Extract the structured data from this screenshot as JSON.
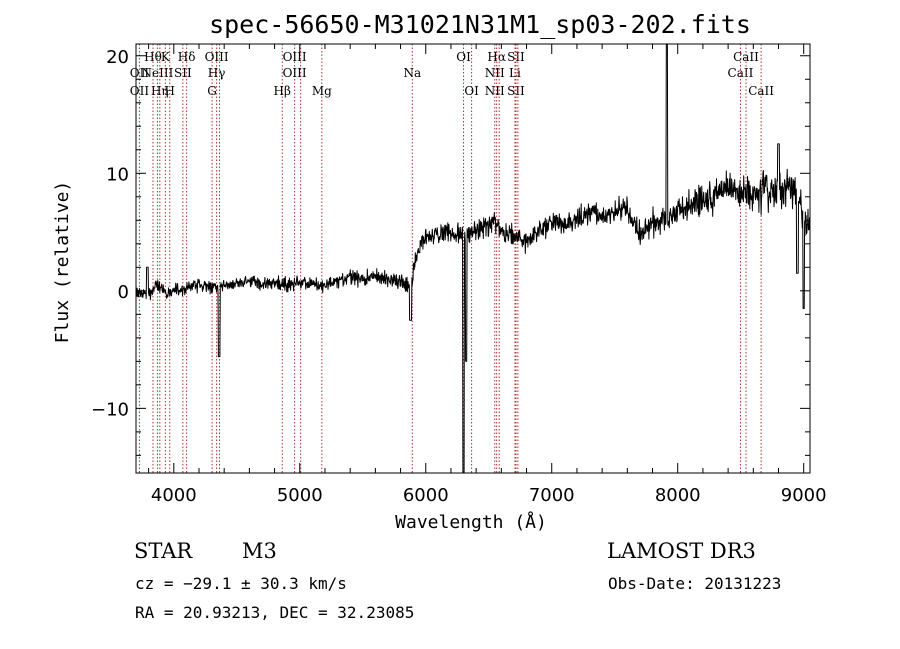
{
  "chart_data": {
    "type": "line",
    "title": "spec-56650-M31021N31M1_sp03-202.fits",
    "xlabel": "Wavelength (Å)",
    "ylabel": "Flux (relative)",
    "xlim": [
      3700,
      9050
    ],
    "ylim": [
      -15.5,
      21
    ],
    "xticks": [
      4000,
      5000,
      6000,
      7000,
      8000,
      9000
    ],
    "xtick_labels": [
      "4000",
      "5000",
      "6000",
      "7000",
      "8000",
      "9000"
    ],
    "yticks": [
      -10,
      0,
      10,
      20
    ],
    "ytick_labels": [
      "−10",
      "0",
      "10",
      "20"
    ],
    "grid": false,
    "series": [
      {
        "name": "spectrum",
        "anchors": [
          [
            3700,
            0.0
          ],
          [
            3800,
            -0.4
          ],
          [
            3850,
            0.6
          ],
          [
            3900,
            0.2
          ],
          [
            3950,
            -0.3
          ],
          [
            4000,
            0.0
          ],
          [
            4100,
            0.2
          ],
          [
            4200,
            0.5
          ],
          [
            4300,
            0.3
          ],
          [
            4400,
            0.4
          ],
          [
            4500,
            0.6
          ],
          [
            4600,
            0.8
          ],
          [
            4700,
            0.6
          ],
          [
            4800,
            0.5
          ],
          [
            4900,
            0.6
          ],
          [
            5000,
            0.7
          ],
          [
            5100,
            0.6
          ],
          [
            5200,
            0.4
          ],
          [
            5300,
            0.8
          ],
          [
            5400,
            1.2
          ],
          [
            5500,
            1.0
          ],
          [
            5600,
            1.2
          ],
          [
            5700,
            1.0
          ],
          [
            5800,
            0.8
          ],
          [
            5880,
            0.2
          ],
          [
            5910,
            2.5
          ],
          [
            5960,
            4.0
          ],
          [
            6000,
            4.5
          ],
          [
            6100,
            4.8
          ],
          [
            6200,
            5.0
          ],
          [
            6300,
            4.6
          ],
          [
            6400,
            5.2
          ],
          [
            6500,
            5.5
          ],
          [
            6550,
            6.0
          ],
          [
            6600,
            5.0
          ],
          [
            6700,
            4.6
          ],
          [
            6800,
            4.2
          ],
          [
            6900,
            5.2
          ],
          [
            7000,
            5.8
          ],
          [
            7100,
            5.6
          ],
          [
            7200,
            6.0
          ],
          [
            7300,
            6.6
          ],
          [
            7400,
            6.2
          ],
          [
            7500,
            6.8
          ],
          [
            7600,
            7.2
          ],
          [
            7650,
            5.5
          ],
          [
            7700,
            4.8
          ],
          [
            7800,
            5.8
          ],
          [
            7900,
            6.2
          ],
          [
            8000,
            6.8
          ],
          [
            8100,
            7.2
          ],
          [
            8200,
            7.6
          ],
          [
            8300,
            8.2
          ],
          [
            8400,
            8.6
          ],
          [
            8500,
            8.2
          ],
          [
            8600,
            8.0
          ],
          [
            8700,
            8.4
          ],
          [
            8800,
            8.9
          ],
          [
            8900,
            8.6
          ],
          [
            8960,
            8.0
          ],
          [
            9000,
            6.0
          ],
          [
            9050,
            5.5
          ]
        ],
        "features": [
          [
            4360,
            -5.6,
            6
          ],
          [
            5880,
            -2.5,
            8
          ],
          [
            6300,
            -15.5,
            6
          ],
          [
            6320,
            -6.0,
            5
          ],
          [
            7913,
            21.0,
            5
          ],
          [
            8800,
            12.5,
            8
          ],
          [
            8950,
            1.5,
            6
          ],
          [
            9000,
            -1.5,
            6
          ],
          [
            3790,
            2.0,
            8
          ]
        ],
        "noise": [
          [
            3700,
            0.55
          ],
          [
            4500,
            0.5
          ],
          [
            5500,
            0.6
          ],
          [
            6000,
            0.8
          ],
          [
            7600,
            1.0
          ],
          [
            8300,
            1.3
          ],
          [
            9050,
            1.6
          ]
        ]
      }
    ],
    "line_markers": [
      {
        "wave": 3727,
        "top": "",
        "mid": "OII",
        "bot": "OII"
      },
      {
        "wave": 3835,
        "top": "Hθ",
        "mid": "",
        "bot": ""
      },
      {
        "wave": 3870,
        "top": "",
        "mid": "NeIII",
        "bot": ""
      },
      {
        "wave": 3889,
        "top": "",
        "mid": "",
        "bot": "Hη"
      },
      {
        "wave": 3933,
        "top": "K",
        "mid": "",
        "bot": ""
      },
      {
        "wave": 3968,
        "top": "",
        "mid": "",
        "bot": "H"
      },
      {
        "wave": 4072,
        "top": "",
        "mid": "SII",
        "bot": ""
      },
      {
        "wave": 4102,
        "top": "Hδ",
        "mid": "",
        "bot": ""
      },
      {
        "wave": 4304,
        "top": "",
        "mid": "",
        "bot": "G"
      },
      {
        "wave": 4340,
        "top": "OIII",
        "mid": "Hγ",
        "bot": ""
      },
      {
        "wave": 4363,
        "top": "",
        "mid": "",
        "bot": ""
      },
      {
        "wave": 4861,
        "top": "",
        "mid": "",
        "bot": "Hβ"
      },
      {
        "wave": 4959,
        "top": "OIII",
        "mid": "OIII",
        "bot": ""
      },
      {
        "wave": 5007,
        "top": "",
        "mid": "",
        "bot": ""
      },
      {
        "wave": 5175,
        "top": "",
        "mid": "",
        "bot": "Mg"
      },
      {
        "wave": 5893,
        "top": "",
        "mid": "Na",
        "bot": ""
      },
      {
        "wave": 6300,
        "top": "OI",
        "mid": "",
        "bot": ""
      },
      {
        "wave": 6364,
        "top": "",
        "mid": "",
        "bot": "OI"
      },
      {
        "wave": 6548,
        "top": "",
        "mid": "NII",
        "bot": "NII"
      },
      {
        "wave": 6563,
        "top": "Hα",
        "mid": "",
        "bot": ""
      },
      {
        "wave": 6583,
        "top": "",
        "mid": "",
        "bot": ""
      },
      {
        "wave": 6708,
        "top": "",
        "mid": "Li",
        "bot": ""
      },
      {
        "wave": 6716,
        "top": "SII",
        "mid": "",
        "bot": "SII"
      },
      {
        "wave": 6731,
        "top": "",
        "mid": "",
        "bot": ""
      },
      {
        "wave": 8498,
        "top": "",
        "mid": "CaII",
        "bot": ""
      },
      {
        "wave": 8542,
        "top": "CaII",
        "mid": "",
        "bot": ""
      },
      {
        "wave": 8662,
        "top": "",
        "mid": "",
        "bot": "CaII"
      }
    ]
  },
  "footer": {
    "object_class": "STAR",
    "subclass": "M3",
    "survey": "LAMOST DR3",
    "cz": "cz = −29.1 ± 30.3 km/s",
    "obs_date": "Obs-Date: 20131223",
    "coords": "RA =  20.93213, DEC =  32.23085"
  },
  "colors": {
    "spectrum": "#000000",
    "marker_line": "#b03030",
    "frame": "#000000"
  }
}
